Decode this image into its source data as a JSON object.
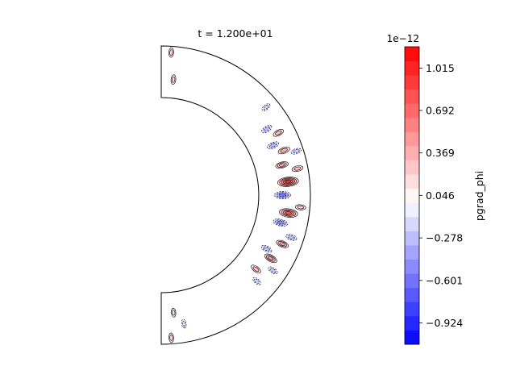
{
  "chart_data": {
    "type": "heatmap",
    "title": "t = 1.200e+01",
    "domain": "meridional half-annulus (theta 0..pi)",
    "colorbar": {
      "label": "pgrad_phi",
      "offset_text": "1e−12",
      "range": [
        -1.087,
        1.177
      ],
      "n_levels": 21,
      "ticks": [
        {
          "value": 1.015,
          "label": "1.015"
        },
        {
          "value": 0.692,
          "label": "0.692"
        },
        {
          "value": 0.369,
          "label": "0.369"
        },
        {
          "value": 0.046,
          "label": "0.046"
        },
        {
          "value": -0.278,
          "label": "−0.278"
        },
        {
          "value": -0.601,
          "label": "−0.601"
        },
        {
          "value": -0.924,
          "label": "−0.924"
        }
      ]
    },
    "colors": {
      "positive": "#ff0000",
      "negative": "#0000ff",
      "zero": "#ffffff",
      "contour": "#000000"
    },
    "features": [
      {
        "theta_deg": 84,
        "r": 0.79,
        "value": 0.9
      },
      {
        "theta_deg": 98,
        "r": 0.8,
        "value": 0.75
      },
      {
        "theta_deg": 90,
        "r": 0.73,
        "value": -0.6
      },
      {
        "theta_deg": 103,
        "r": 0.74,
        "value": -0.5
      },
      {
        "theta_deg": 76,
        "r": 0.76,
        "value": 0.4
      },
      {
        "theta_deg": 70,
        "r": 0.82,
        "value": 0.35
      },
      {
        "theta_deg": 62,
        "r": 0.84,
        "value": 0.3
      },
      {
        "theta_deg": 112,
        "r": 0.82,
        "value": 0.4
      },
      {
        "theta_deg": 120,
        "r": 0.78,
        "value": 0.45
      },
      {
        "theta_deg": 128,
        "r": 0.72,
        "value": 0.3
      },
      {
        "theta_deg": 79,
        "r": 0.9,
        "value": 0.3
      },
      {
        "theta_deg": 95,
        "r": 0.91,
        "value": 0.25
      },
      {
        "theta_deg": 58,
        "r": 0.76,
        "value": -0.3
      },
      {
        "theta_deg": 66,
        "r": 0.74,
        "value": -0.35
      },
      {
        "theta_deg": 108,
        "r": 0.88,
        "value": -0.3
      },
      {
        "theta_deg": 117,
        "r": 0.7,
        "value": -0.3
      },
      {
        "theta_deg": 124,
        "r": 0.86,
        "value": -0.25
      },
      {
        "theta_deg": 72,
        "r": 0.93,
        "value": -0.25
      },
      {
        "theta_deg": 50,
        "r": 0.88,
        "value": -0.2
      },
      {
        "theta_deg": 132,
        "r": 0.8,
        "value": -0.2
      },
      {
        "theta_deg": 4,
        "r": 0.94,
        "value": 0.2
      },
      {
        "theta_deg": 6,
        "r": 0.68,
        "value": 0.2
      },
      {
        "theta_deg": 176,
        "r": 0.94,
        "value": 0.2
      },
      {
        "theta_deg": 174,
        "r": 0.7,
        "value": 0.15
      },
      {
        "theta_deg": 170,
        "r": 0.82,
        "value": -0.15
      }
    ]
  }
}
